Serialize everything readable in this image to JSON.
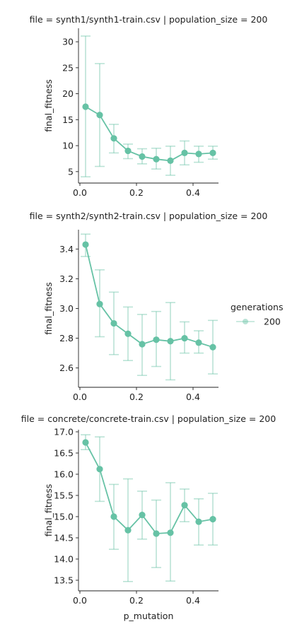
{
  "legend": {
    "title": "generations",
    "label": "200",
    "placement": "right"
  },
  "accent_color": "#66c2a5",
  "chart_data": [
    {
      "type": "line",
      "title": "file = synth1/synth1-train.csv | population_size = 200",
      "xlabel": "",
      "ylabel": "final_fitness",
      "xlim": [
        -0.005,
        0.49
      ],
      "ylim": [
        2.8,
        32.6
      ],
      "xticks": [
        0.0,
        0.2,
        0.4
      ],
      "xtick_labels": [
        "0.0",
        "0.2",
        "0.4"
      ],
      "yticks": [
        5,
        10,
        15,
        20,
        25,
        30
      ],
      "ytick_labels": [
        "5",
        "10",
        "15",
        "20",
        "25",
        "30"
      ],
      "grid": false,
      "series": [
        {
          "name": "200",
          "x": [
            0.02,
            0.07,
            0.12,
            0.17,
            0.22,
            0.27,
            0.32,
            0.37,
            0.42,
            0.47
          ],
          "y": [
            17.5,
            15.9,
            11.4,
            9.0,
            7.9,
            7.4,
            7.1,
            8.6,
            8.4,
            8.6
          ],
          "err_low": [
            4.0,
            6.0,
            8.6,
            7.5,
            6.5,
            5.5,
            4.3,
            6.3,
            6.8,
            7.4
          ],
          "err_high": [
            31.1,
            25.8,
            14.1,
            10.3,
            9.4,
            9.5,
            9.9,
            10.9,
            9.9,
            9.9
          ]
        }
      ]
    },
    {
      "type": "line",
      "title": "file = synth2/synth2-train.csv | population_size = 200",
      "xlabel": "",
      "ylabel": "final_fitness",
      "xlim": [
        -0.005,
        0.49
      ],
      "ylim": [
        2.47,
        3.53
      ],
      "xticks": [
        0.0,
        0.2,
        0.4
      ],
      "xtick_labels": [
        "0.0",
        "0.2",
        "0.4"
      ],
      "yticks": [
        2.6,
        2.8,
        3.0,
        3.2,
        3.4
      ],
      "ytick_labels": [
        "2.6",
        "2.8",
        "3.0",
        "3.2",
        "3.4"
      ],
      "grid": false,
      "series": [
        {
          "name": "200",
          "x": [
            0.02,
            0.07,
            0.12,
            0.17,
            0.22,
            0.27,
            0.32,
            0.37,
            0.42,
            0.47
          ],
          "y": [
            3.43,
            3.03,
            2.9,
            2.83,
            2.76,
            2.79,
            2.78,
            2.8,
            2.77,
            2.74
          ],
          "err_low": [
            3.35,
            2.81,
            2.69,
            2.65,
            2.55,
            2.61,
            2.52,
            2.7,
            2.7,
            2.56
          ],
          "err_high": [
            3.5,
            3.26,
            3.11,
            3.01,
            2.96,
            2.98,
            3.04,
            2.91,
            2.85,
            2.92
          ]
        }
      ]
    },
    {
      "type": "line",
      "title": "file = concrete/concrete-train.csv | population_size = 200",
      "xlabel": "p_mutation",
      "ylabel": "final_fitness",
      "xlim": [
        -0.005,
        0.49
      ],
      "ylim": [
        13.25,
        17.05
      ],
      "xticks": [
        0.0,
        0.2,
        0.4
      ],
      "xtick_labels": [
        "0.0",
        "0.2",
        "0.4"
      ],
      "yticks": [
        13.5,
        14.0,
        14.5,
        15.0,
        15.5,
        16.0,
        16.5,
        17.0
      ],
      "ytick_labels": [
        "13.5",
        "14.0",
        "14.5",
        "15.0",
        "15.5",
        "16.0",
        "16.5",
        "17.0"
      ],
      "grid": false,
      "series": [
        {
          "name": "200",
          "x": [
            0.02,
            0.07,
            0.12,
            0.17,
            0.22,
            0.27,
            0.32,
            0.37,
            0.42,
            0.47
          ],
          "y": [
            16.75,
            16.12,
            15.0,
            14.68,
            15.04,
            14.6,
            14.62,
            15.27,
            14.88,
            14.94
          ],
          "err_low": [
            16.58,
            15.36,
            14.23,
            13.47,
            14.47,
            13.8,
            13.48,
            14.88,
            14.33,
            14.33
          ],
          "err_high": [
            16.93,
            16.88,
            15.76,
            15.89,
            15.6,
            15.39,
            15.8,
            15.65,
            15.42,
            15.55
          ]
        }
      ]
    }
  ]
}
